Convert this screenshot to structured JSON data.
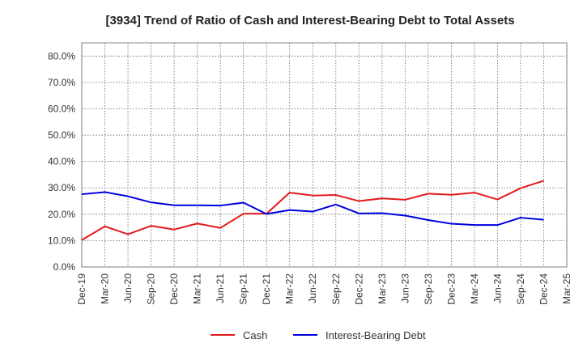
{
  "chart_data": {
    "type": "line",
    "title": "[3934]  Trend of Ratio of Cash and Interest-Bearing Debt to Total Assets",
    "xlabel": "",
    "ylabel": "",
    "ylim": [
      0,
      85
    ],
    "y_ticks": [
      "0.0%",
      "10.0%",
      "20.0%",
      "30.0%",
      "40.0%",
      "50.0%",
      "60.0%",
      "70.0%",
      "80.0%"
    ],
    "y_tick_values": [
      0,
      10,
      20,
      30,
      40,
      50,
      60,
      70,
      80
    ],
    "x": [
      "Dec-19",
      "Mar-20",
      "Jun-20",
      "Sep-20",
      "Dec-20",
      "Mar-21",
      "Jun-21",
      "Sep-21",
      "Dec-21",
      "Mar-22",
      "Jun-22",
      "Sep-22",
      "Dec-22",
      "Mar-23",
      "Jun-23",
      "Sep-23",
      "Dec-23",
      "Mar-24",
      "Jun-24",
      "Sep-24",
      "Dec-24",
      "Mar-25"
    ],
    "grid": true,
    "legend_position": "bottom-center",
    "series": [
      {
        "name": "Cash",
        "color": "#e31a1c",
        "values": [
          10.2,
          15.4,
          12.4,
          15.6,
          14.2,
          16.5,
          14.8,
          20.2,
          20.2,
          28.2,
          27.1,
          27.3,
          25.0,
          26.0,
          25.5,
          27.8,
          27.4,
          28.2,
          25.6,
          29.9,
          32.7,
          null
        ]
      },
      {
        "name": "Interest-Bearing Debt",
        "color": "#0000dd",
        "values": [
          27.6,
          28.4,
          26.8,
          24.5,
          23.4,
          23.4,
          23.3,
          24.4,
          20.1,
          21.6,
          21.0,
          23.7,
          20.3,
          20.4,
          19.5,
          17.8,
          16.4,
          15.9,
          15.9,
          18.7,
          17.9,
          null
        ]
      }
    ]
  }
}
